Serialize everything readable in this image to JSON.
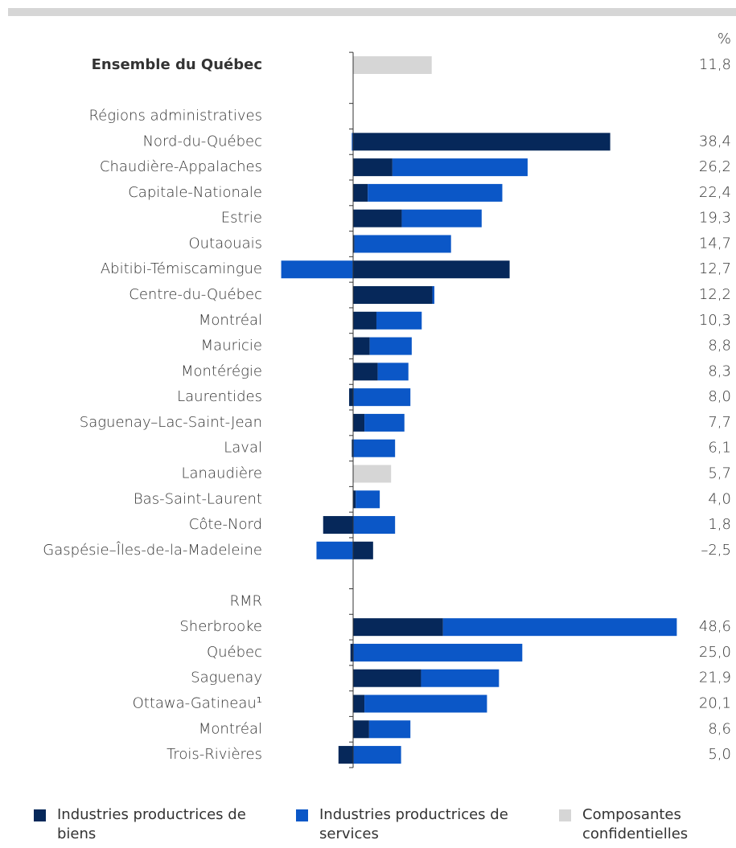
{
  "chart_data": {
    "type": "diverging-stacked-bar",
    "unit": "%",
    "categories": [
      "Ensemble du Québec",
      "Régions administratives",
      "Nord-du-Québec",
      "Chaudière-Appalaches",
      "Capitale-Nationale",
      "Estrie",
      "Outaouais",
      "Abitibi-Témiscamingue",
      "Centre-du-Québec",
      "Montréal",
      "Mauricie",
      "Montérégie",
      "Laurentides",
      "Saguenay–Lac-Saint-Jean",
      "Laval",
      "Lanaudière",
      "Bas-Saint-Laurent",
      "Côte-Nord",
      "Gaspésie–Îles-de-la-Madeleine",
      "RMR",
      "Sherbrooke",
      "Québec",
      "Saguenay",
      "Ottawa-Gatineau¹",
      "Montréal",
      "Trois-Rivières"
    ],
    "series": [
      {
        "name": "Industries productrices de biens",
        "color": "#06285a",
        "values": [
          null,
          null,
          38.6,
          5.9,
          2.2,
          7.3,
          0.2,
          23.5,
          11.9,
          3.5,
          2.5,
          3.7,
          -0.6,
          1.7,
          -0.2,
          null,
          0.4,
          -4.5,
          3.0,
          null,
          13.5,
          -0.4,
          10.2,
          1.7,
          2.4,
          -2.2
        ]
      },
      {
        "name": "Industries productrices de services",
        "color": "#0b57c7",
        "values": [
          null,
          null,
          -0.2,
          20.3,
          20.2,
          12.0,
          14.5,
          -10.8,
          0.3,
          6.8,
          6.3,
          4.6,
          8.6,
          6.0,
          6.3,
          null,
          3.6,
          6.3,
          -5.5,
          null,
          35.1,
          25.4,
          11.7,
          18.4,
          6.2,
          7.2
        ]
      },
      {
        "name": "Composantes confidentielles",
        "color": "#d6d6d6",
        "values": [
          11.8,
          null,
          null,
          null,
          null,
          null,
          null,
          null,
          null,
          null,
          null,
          null,
          null,
          null,
          null,
          5.7,
          null,
          null,
          null,
          null,
          null,
          null,
          null,
          null,
          null,
          null
        ]
      }
    ],
    "totals": {
      "values": [
        11.8,
        null,
        38.4,
        26.2,
        22.4,
        19.3,
        14.7,
        12.7,
        12.2,
        10.3,
        8.8,
        8.3,
        8.0,
        7.7,
        6.1,
        5.7,
        4.0,
        1.8,
        -2.5,
        null,
        48.6,
        25.0,
        21.9,
        20.1,
        8.6,
        5.0
      ],
      "value_labels": [
        "11,8",
        null,
        "38,4",
        "26,2",
        "22,4",
        "19,3",
        "14,7",
        "12,7",
        "12,2",
        "10,3",
        "8,8",
        "8,3",
        "8,0",
        "7,7",
        "6,1",
        "5,7",
        "4,0",
        "1,8",
        "–2,5",
        null,
        "48,6",
        "25,0",
        "21,9",
        "20,1",
        "8,6",
        "5,0"
      ]
    }
  }
}
